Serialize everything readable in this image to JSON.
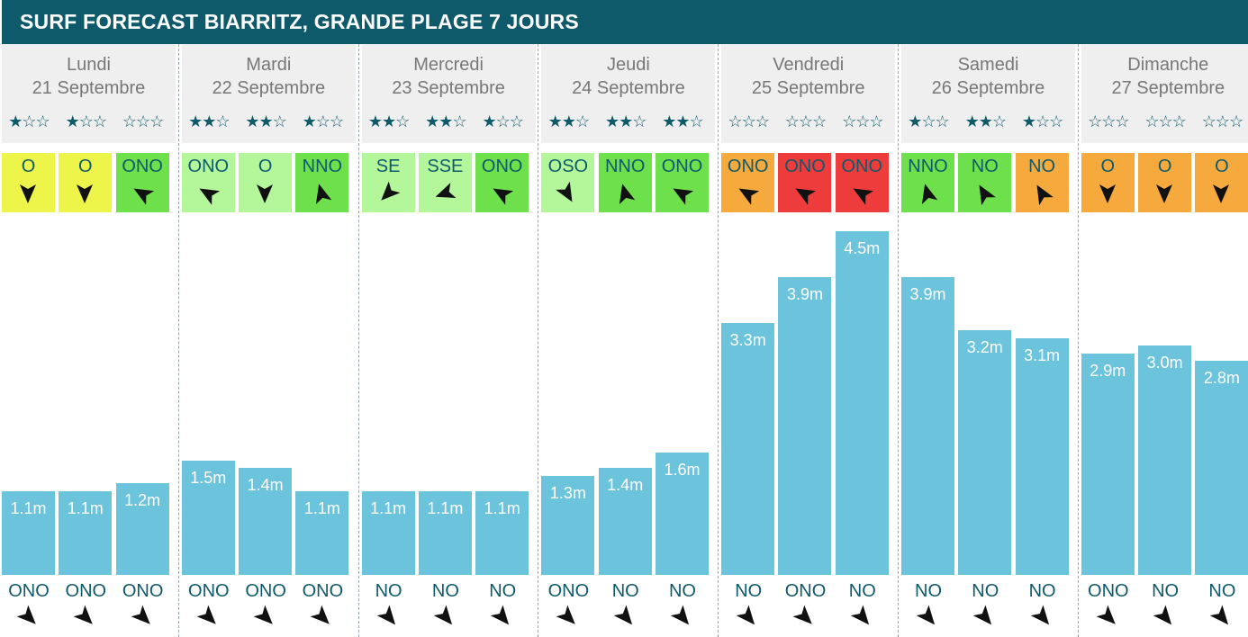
{
  "header": {
    "title": "SURF FORECAST BIARRITZ, GRANDE PLAGE 7 JOURS"
  },
  "colors": {
    "header_bg": "#0e5a6b",
    "bar": "#6bc3dc",
    "wind_yellow": "#eef54a",
    "wind_lightgreen": "#b4f79b",
    "wind_green": "#6ee04c",
    "wind_orange": "#f6aa3e",
    "wind_red": "#ee3b3b"
  },
  "chart_data": {
    "type": "bar",
    "unit": "m",
    "days": [
      {
        "name": "Lundi",
        "date": "21 Septembre",
        "slots": [
          {
            "stars": 1,
            "wind": "O",
            "wind_color": "yellow",
            "wind_deg": 90,
            "wave": 1.1,
            "wave_label": "1.1m",
            "swell": "ONO",
            "swell_deg": -45
          },
          {
            "stars": 1,
            "wind": "O",
            "wind_color": "yellow",
            "wind_deg": 90,
            "wave": 1.1,
            "wave_label": "1.1m",
            "swell": "ONO",
            "swell_deg": -45
          },
          {
            "stars": 0,
            "wind": "ONO",
            "wind_color": "green",
            "wind_deg": -150,
            "wave": 1.2,
            "wave_label": "1.2m",
            "swell": "ONO",
            "swell_deg": -45
          }
        ]
      },
      {
        "name": "Mardi",
        "date": "22 Septembre",
        "slots": [
          {
            "stars": 2,
            "wind": "ONO",
            "wind_color": "lightgreen",
            "wind_deg": -150,
            "wave": 1.5,
            "wave_label": "1.5m",
            "swell": "ONO",
            "swell_deg": -45
          },
          {
            "stars": 2,
            "wind": "O",
            "wind_color": "lightgreen",
            "wind_deg": 90,
            "wave": 1.4,
            "wave_label": "1.4m",
            "swell": "ONO",
            "swell_deg": -45
          },
          {
            "stars": 1,
            "wind": "NNO",
            "wind_color": "green",
            "wind_deg": -105,
            "wave": 1.1,
            "wave_label": "1.1m",
            "swell": "ONO",
            "swell_deg": -45
          }
        ]
      },
      {
        "name": "Mercredi",
        "date": "23 Septembre",
        "slots": [
          {
            "stars": 2,
            "wind": "SE",
            "wind_color": "lightgreen",
            "wind_deg": 135,
            "wave": 1.1,
            "wave_label": "1.1m",
            "swell": "NO",
            "swell_deg": -40
          },
          {
            "stars": 2,
            "wind": "SSE",
            "wind_color": "lightgreen",
            "wind_deg": 160,
            "wave": 1.1,
            "wave_label": "1.1m",
            "swell": "NO",
            "swell_deg": -40
          },
          {
            "stars": 1,
            "wind": "ONO",
            "wind_color": "green",
            "wind_deg": -150,
            "wave": 1.1,
            "wave_label": "1.1m",
            "swell": "NO",
            "swell_deg": -40
          }
        ]
      },
      {
        "name": "Jeudi",
        "date": "24 Septembre",
        "slots": [
          {
            "stars": 2,
            "wind": "OSO",
            "wind_color": "lightgreen",
            "wind_deg": 60,
            "wave": 1.3,
            "wave_label": "1.3m",
            "swell": "ONO",
            "swell_deg": -45
          },
          {
            "stars": 2,
            "wind": "NNO",
            "wind_color": "green",
            "wind_deg": -105,
            "wave": 1.4,
            "wave_label": "1.4m",
            "swell": "NO",
            "swell_deg": -40
          },
          {
            "stars": 2,
            "wind": "ONO",
            "wind_color": "green",
            "wind_deg": -150,
            "wave": 1.6,
            "wave_label": "1.6m",
            "swell": "NO",
            "swell_deg": -40
          }
        ]
      },
      {
        "name": "Vendredi",
        "date": "25 Septembre",
        "slots": [
          {
            "stars": 0,
            "wind": "ONO",
            "wind_color": "orange",
            "wind_deg": -150,
            "wave": 3.3,
            "wave_label": "3.3m",
            "swell": "NO",
            "swell_deg": -40
          },
          {
            "stars": 0,
            "wind": "ONO",
            "wind_color": "red",
            "wind_deg": -150,
            "wave": 3.9,
            "wave_label": "3.9m",
            "swell": "ONO",
            "swell_deg": -45
          },
          {
            "stars": 0,
            "wind": "ONO",
            "wind_color": "red",
            "wind_deg": -150,
            "wave": 4.5,
            "wave_label": "4.5m",
            "swell": "NO",
            "swell_deg": -40
          }
        ]
      },
      {
        "name": "Samedi",
        "date": "26 Septembre",
        "slots": [
          {
            "stars": 1,
            "wind": "NNO",
            "wind_color": "green",
            "wind_deg": -105,
            "wave": 3.9,
            "wave_label": "3.9m",
            "swell": "NO",
            "swell_deg": -40
          },
          {
            "stars": 2,
            "wind": "NO",
            "wind_color": "green",
            "wind_deg": -120,
            "wave": 3.2,
            "wave_label": "3.2m",
            "swell": "NO",
            "swell_deg": -40
          },
          {
            "stars": 1,
            "wind": "NO",
            "wind_color": "orange",
            "wind_deg": -120,
            "wave": 3.1,
            "wave_label": "3.1m",
            "swell": "NO",
            "swell_deg": -40
          }
        ]
      },
      {
        "name": "Dimanche",
        "date": "27 Septembre",
        "slots": [
          {
            "stars": 0,
            "wind": "O",
            "wind_color": "orange",
            "wind_deg": 90,
            "wave": 2.9,
            "wave_label": "2.9m",
            "swell": "ONO",
            "swell_deg": -45
          },
          {
            "stars": 0,
            "wind": "O",
            "wind_color": "orange",
            "wind_deg": 90,
            "wave": 3.0,
            "wave_label": "3.0m",
            "swell": "NO",
            "swell_deg": -40
          },
          {
            "stars": 0,
            "wind": "O",
            "wind_color": "orange",
            "wind_deg": 90,
            "wave": 2.8,
            "wave_label": "2.8m",
            "swell": "NO",
            "swell_deg": -40
          }
        ]
      }
    ]
  }
}
